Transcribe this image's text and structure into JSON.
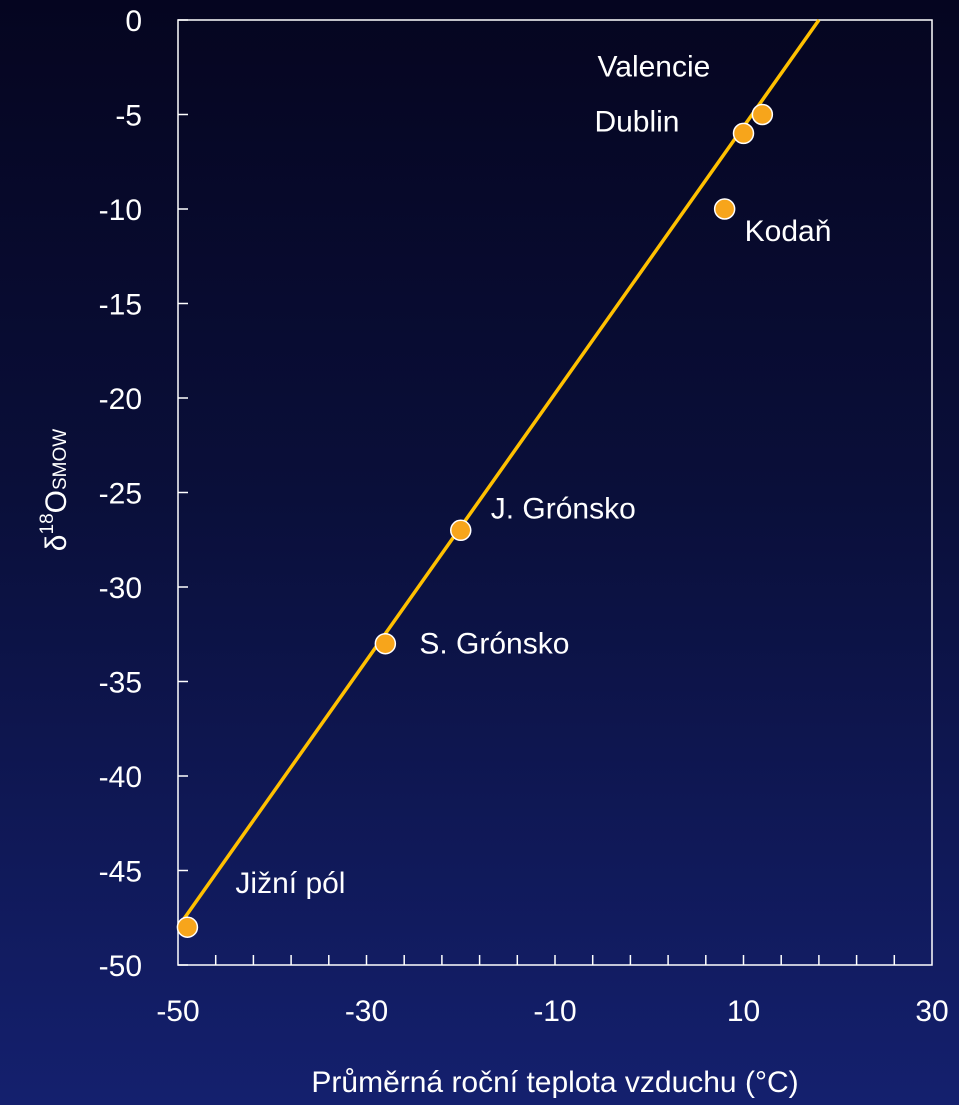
{
  "chart_data": {
    "type": "scatter",
    "xlabel": "Průměrná roční teplota vzduchu (°C)",
    "ylabel": {
      "prefix": "δ",
      "sup": "18",
      "main": "O",
      "sub": "SMOW"
    },
    "xlim": [
      -50,
      30
    ],
    "ylim": [
      -50,
      0
    ],
    "x_ticks": [
      -50,
      -30,
      -10,
      10,
      30
    ],
    "x_minor_step": 4,
    "y_ticks": [
      0,
      -5,
      -10,
      -15,
      -20,
      -25,
      -30,
      -35,
      -40,
      -45,
      -50
    ],
    "grid": false,
    "series": [
      {
        "points": [
          {
            "x": -49,
            "y": -48,
            "label": "Jižní pól"
          },
          {
            "x": -28,
            "y": -33,
            "label": "S. Grónsko"
          },
          {
            "x": -20,
            "y": -27,
            "label": "J. Grónsko"
          },
          {
            "x": 8,
            "y": -10,
            "label": "Kodaň"
          },
          {
            "x": 10,
            "y": -6,
            "label": "Dublin"
          },
          {
            "x": 12,
            "y": -5,
            "label": "Valencie"
          }
        ]
      }
    ],
    "trend_line": {
      "x": [
        -50,
        18
      ],
      "y": [
        -48,
        0
      ]
    },
    "colors": {
      "marker_fill": "#f7a51b",
      "marker_stroke": "#ffffff",
      "line": "#ffc000",
      "axes": "#ffffff"
    }
  }
}
